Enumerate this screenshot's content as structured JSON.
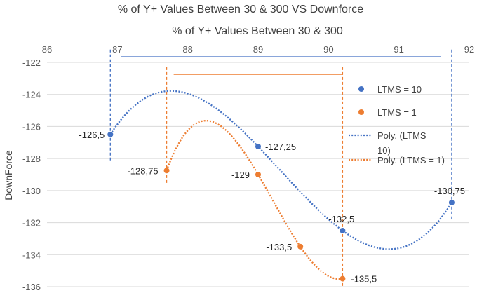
{
  "chart_data": {
    "type": "scatter",
    "title": "% of Y+ Values Between 30 & 300 VS Downforce",
    "xlabel": "% of Y+ Values Between 30 & 300",
    "ylabel": "DownForce",
    "xlim": [
      86,
      92
    ],
    "ylim": [
      -136,
      -122
    ],
    "x_ticks": [
      "86",
      "87",
      "88",
      "89",
      "90",
      "91",
      "92"
    ],
    "y_ticks": [
      "-122",
      "-124",
      "-126",
      "-128",
      "-130",
      "-132",
      "-134",
      "-136"
    ],
    "gridlines": "horizontal",
    "legend_position": "right",
    "series": [
      {
        "name": "LTMS = 10",
        "color": "#4472C4",
        "points": [
          {
            "x": 86.9,
            "y": -126.5,
            "label": "-126,5"
          },
          {
            "x": 89.0,
            "y": -127.25,
            "label": "-127,25"
          },
          {
            "x": 90.2,
            "y": -132.5,
            "label": "-132,5"
          },
          {
            "x": 91.75,
            "y": -130.75,
            "label": "-130,75"
          }
        ]
      },
      {
        "name": "LTMS = 1",
        "color": "#ED7D31",
        "points": [
          {
            "x": 87.7,
            "y": -128.75,
            "label": "-128,75"
          },
          {
            "x": 89.0,
            "y": -129,
            "label": "-129"
          },
          {
            "x": 89.6,
            "y": -133.5,
            "label": "-133,5"
          },
          {
            "x": 90.2,
            "y": -135.5,
            "label": "-135,5"
          }
        ]
      }
    ],
    "trendlines": [
      {
        "name_lines": [
          "Poly. (LTMS =",
          "10)"
        ],
        "series": "LTMS = 10",
        "color": "#4472C4",
        "style": "dotted",
        "order": 3
      },
      {
        "name_lines": [
          "Poly. (LTMS = 1)"
        ],
        "series": "LTMS = 1",
        "color": "#ED7D31",
        "style": "dotted",
        "order": 3
      }
    ],
    "annotations": [
      {
        "type": "hline",
        "y": -121.65,
        "x_from": 87.05,
        "x_to": 91.6,
        "color": "#4472C4"
      },
      {
        "type": "vline",
        "x": 86.9,
        "y_from": -121.2,
        "y_to": -128.2,
        "color": "#4472C4",
        "style": "dashed"
      },
      {
        "type": "vline",
        "x": 91.75,
        "y_from": -121.2,
        "y_to": -131.9,
        "color": "#4472C4",
        "style": "dashed"
      },
      {
        "type": "hline",
        "y": -122.75,
        "x_from": 87.8,
        "x_to": 90.2,
        "color": "#ED7D31"
      },
      {
        "type": "vline",
        "x": 87.7,
        "y_from": -122.3,
        "y_to": -129.6,
        "color": "#ED7D31",
        "style": "dashed"
      },
      {
        "type": "vline",
        "x": 90.2,
        "y_from": -122.3,
        "y_to": -136,
        "color": "#ED7D31",
        "style": "dashed"
      }
    ]
  }
}
